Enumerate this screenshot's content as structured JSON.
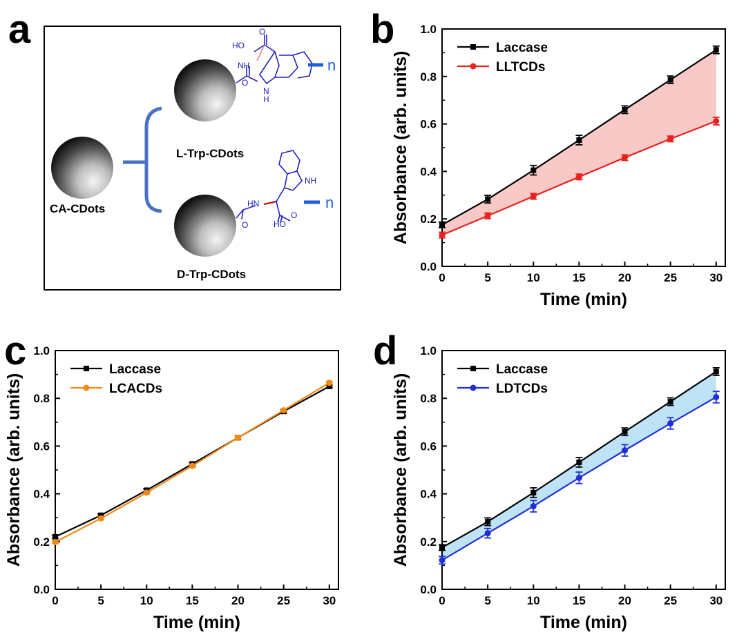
{
  "colors": {
    "laccase": "#000000",
    "lltcds": "#e8211d",
    "lltcds_fill": "#f8c9c7",
    "lcacds": "#ef8a17",
    "ldtcds": "#1f2fd6",
    "ldtcds_fill": "#bfe3f6",
    "chem_blue": "#2020c0",
    "bracket_blue": "#4a72c4"
  },
  "panel_a": {
    "letter": "a",
    "labels": {
      "ca": "CA-CDots",
      "l_trp": "L-Trp-CDots",
      "d_trp": "D-Trp-CDots"
    },
    "chem": {
      "ho": "HO",
      "o": "O",
      "nh": "NH",
      "hn": "HN",
      "n_h": "N",
      "h": "H",
      "n": "n"
    }
  },
  "chart_data": [
    {
      "panel": "b",
      "type": "line",
      "xlabel": "Time (min)",
      "ylabel": "Absorbance (arb. units)",
      "xlim": [
        0,
        31
      ],
      "ylim": [
        0,
        1.0
      ],
      "xticks": [
        "0",
        "5",
        "10",
        "15",
        "20",
        "25",
        "30"
      ],
      "yticks": [
        "0.0",
        "0.2",
        "0.4",
        "0.6",
        "0.8",
        "1.0"
      ],
      "legend": "top-left",
      "shaded_between_series": true,
      "x": [
        0,
        5,
        10,
        15,
        20,
        25,
        30
      ],
      "series": [
        {
          "name": "Laccase",
          "marker": "square",
          "values": [
            0.175,
            0.283,
            0.405,
            0.532,
            0.66,
            0.786,
            0.912
          ],
          "errors": [
            0.012,
            0.016,
            0.02,
            0.02,
            0.016,
            0.016,
            0.016
          ]
        },
        {
          "name": "LLTCDs",
          "marker": "circle",
          "values": [
            0.132,
            0.213,
            0.295,
            0.377,
            0.458,
            0.537,
            0.612
          ],
          "errors": [
            0.012,
            0.012,
            0.012,
            0.012,
            0.012,
            0.012,
            0.016
          ]
        }
      ]
    },
    {
      "panel": "c",
      "type": "line",
      "xlabel": "Time (min)",
      "ylabel": "Absorbance (arb. units)",
      "xlim": [
        0,
        31
      ],
      "ylim": [
        0,
        1.0
      ],
      "xticks": [
        "0",
        "5",
        "10",
        "15",
        "20",
        "25",
        "30"
      ],
      "yticks": [
        "0.0",
        "0.2",
        "0.4",
        "0.6",
        "0.8",
        "1.0"
      ],
      "legend": "top-left",
      "shaded_between_series": false,
      "x": [
        0,
        5,
        10,
        15,
        20,
        25,
        30
      ],
      "series": [
        {
          "name": "Laccase",
          "marker": "square",
          "values": [
            0.22,
            0.31,
            0.415,
            0.525,
            0.635,
            0.745,
            0.85
          ],
          "errors": [
            0.006,
            0.006,
            0.006,
            0.006,
            0.006,
            0.006,
            0.006
          ]
        },
        {
          "name": "LCACDs",
          "marker": "circle",
          "values": [
            0.198,
            0.297,
            0.405,
            0.517,
            0.635,
            0.75,
            0.865
          ],
          "errors": [
            0.006,
            0.006,
            0.006,
            0.006,
            0.006,
            0.006,
            0.006
          ]
        }
      ]
    },
    {
      "panel": "d",
      "type": "line",
      "xlabel": "Time (min)",
      "ylabel": "Absorbance (arb. units)",
      "xlim": [
        0,
        31
      ],
      "ylim": [
        0,
        1.0
      ],
      "xticks": [
        "0",
        "5",
        "10",
        "15",
        "20",
        "25",
        "30"
      ],
      "yticks": [
        "0.0",
        "0.2",
        "0.4",
        "0.6",
        "0.8",
        "1.0"
      ],
      "legend": "top-left",
      "shaded_between_series": true,
      "x": [
        0,
        5,
        10,
        15,
        20,
        25,
        30
      ],
      "series": [
        {
          "name": "Laccase",
          "marker": "square",
          "values": [
            0.175,
            0.283,
            0.405,
            0.532,
            0.66,
            0.786,
            0.912
          ],
          "errors": [
            0.012,
            0.016,
            0.02,
            0.02,
            0.016,
            0.016,
            0.016
          ]
        },
        {
          "name": "LDTCDs",
          "marker": "circle",
          "values": [
            0.122,
            0.235,
            0.348,
            0.467,
            0.582,
            0.695,
            0.805
          ],
          "errors": [
            0.016,
            0.02,
            0.024,
            0.024,
            0.024,
            0.024,
            0.024
          ]
        }
      ]
    }
  ]
}
